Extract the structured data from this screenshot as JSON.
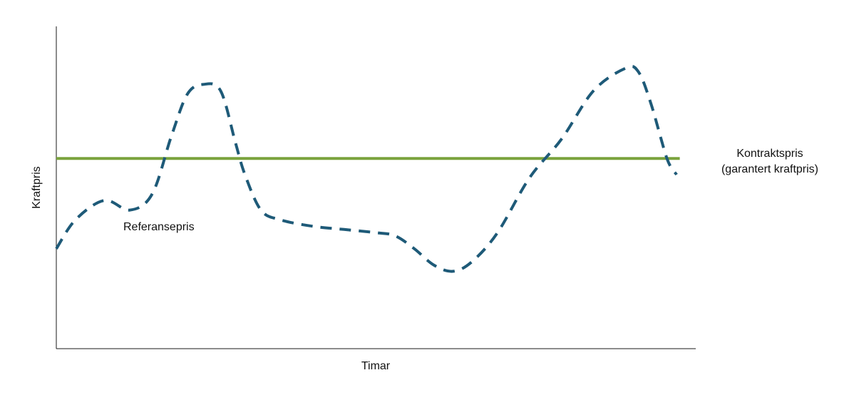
{
  "chart_data": {
    "type": "line",
    "xlabel": "Timar",
    "ylabel": "Kraftpris",
    "grid": false,
    "legend": "none",
    "xlim": [
      0,
      100
    ],
    "ylim": [
      0,
      100
    ],
    "series": [
      {
        "name": "Referansepris",
        "style": "dashed",
        "color": "#1e5a78",
        "x": [
          0,
          3,
          7.5,
          11.5,
          15,
          18,
          20.5,
          23,
          25.7,
          28,
          29.5,
          32,
          35,
          40,
          45,
          50,
          53,
          56,
          59,
          62,
          65,
          69,
          74,
          79,
          84,
          89,
          91,
          93,
          95.5,
          97
        ],
        "y": [
          31,
          40,
          46,
          43,
          48,
          66,
          79,
          82,
          80,
          64,
          54,
          43,
          40,
          38,
          37,
          36,
          35,
          31,
          26,
          24,
          27,
          36,
          53,
          65,
          80,
          87,
          86,
          76,
          59,
          54
        ]
      },
      {
        "name": "Kontraktspris (garantert kraftpris)",
        "style": "solid",
        "color": "#7aa33d",
        "x": [
          0,
          97.5
        ],
        "y": [
          59,
          59
        ]
      }
    ],
    "annotations": [
      {
        "text": "Referansepris",
        "series": 0
      },
      {
        "text": "Kontraktspris",
        "series": 1
      },
      {
        "text": "(garantert kraftpris)",
        "series": 1
      }
    ]
  }
}
